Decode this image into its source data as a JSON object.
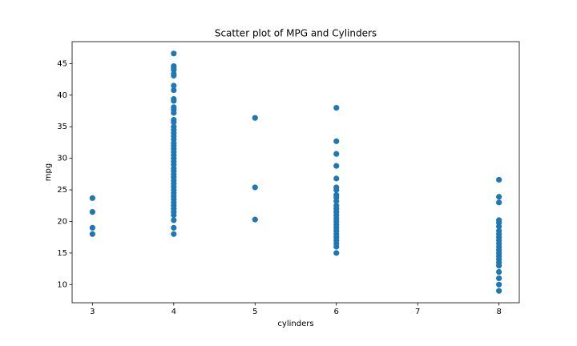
{
  "chart_data": {
    "type": "scatter",
    "title": "Scatter plot of MPG and Cylinders",
    "x_label": "cylinders",
    "y_label": "mpg",
    "color": "#1f77b4",
    "x": [
      3,
      3,
      3,
      3,
      4,
      4,
      4,
      4,
      4,
      4,
      4,
      4,
      4,
      4,
      4,
      4,
      4,
      4,
      4,
      4,
      4,
      4,
      4,
      4,
      4,
      4,
      4,
      4,
      4,
      4,
      4,
      4,
      4,
      4,
      4,
      4,
      4,
      4,
      4,
      4,
      4,
      4,
      4,
      4,
      4,
      4,
      4,
      4,
      4,
      4,
      4,
      5,
      5,
      5,
      6,
      6,
      6,
      6,
      6,
      6,
      6,
      6,
      6,
      6,
      6,
      6,
      6,
      6,
      6,
      6,
      6,
      6,
      6,
      6,
      6,
      6,
      6,
      6,
      6,
      8,
      8,
      8,
      8,
      8,
      8,
      8,
      8,
      8,
      8,
      8,
      8,
      8,
      8,
      8,
      8,
      8,
      8,
      8,
      8,
      8,
      8
    ],
    "values": [
      23.7,
      21.5,
      19,
      18,
      46.6,
      44.6,
      44.3,
      44,
      43.4,
      43.1,
      41.5,
      40.8,
      39.4,
      39.1,
      38.1,
      37.7,
      37.2,
      36.1,
      35.7,
      35,
      34.5,
      34,
      33.5,
      33,
      32.4,
      32,
      31.5,
      31,
      30.5,
      30,
      29.5,
      29,
      28.4,
      28,
      27.5,
      27,
      26.5,
      26,
      25.5,
      25,
      24.5,
      24,
      23.5,
      23,
      22.5,
      22,
      21.5,
      21,
      20.2,
      19,
      18,
      36.4,
      25.4,
      20.3,
      38,
      32.7,
      30.7,
      28.8,
      26.8,
      25.4,
      25,
      24.2,
      23.8,
      23.2,
      22.5,
      22,
      21.5,
      21,
      20.5,
      20,
      19.5,
      19,
      18.5,
      18,
      17.5,
      17,
      16.5,
      16,
      15,
      26.6,
      23.9,
      23,
      20.2,
      19.8,
      19.2,
      18.5,
      18,
      17.5,
      17,
      16.5,
      16,
      15.5,
      15,
      14.5,
      14,
      13.5,
      13,
      12,
      11,
      10,
      9
    ],
    "xlim": [
      2.75,
      8.25
    ],
    "ylim": [
      7.12,
      48.48
    ],
    "xticks": [
      3,
      4,
      5,
      6,
      7,
      8
    ],
    "yticks": [
      10,
      15,
      20,
      25,
      30,
      35,
      40,
      45
    ],
    "grid": false
  }
}
